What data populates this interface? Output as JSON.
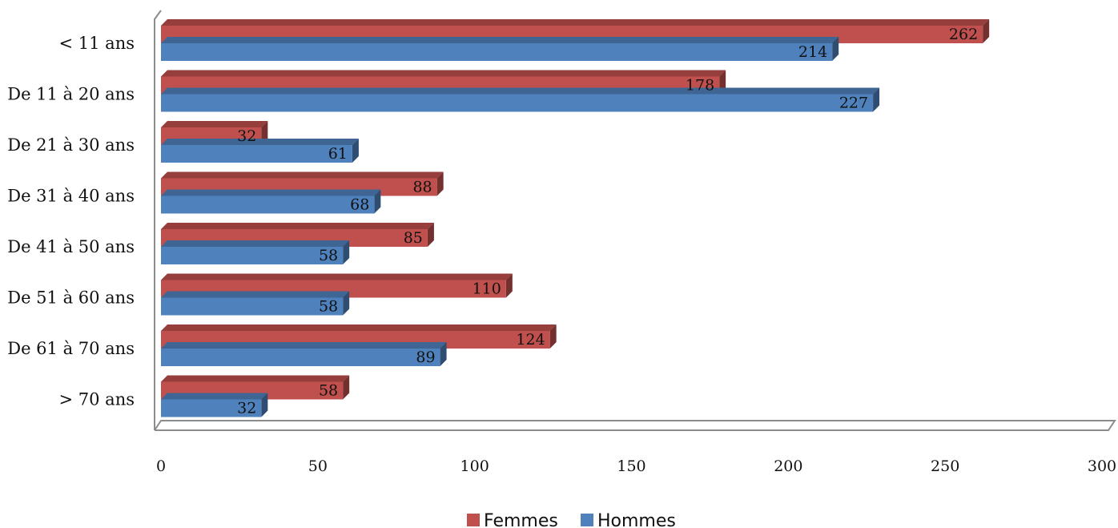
{
  "chart_data": {
    "type": "bar",
    "orientation": "horizontal",
    "style": "3d",
    "categories": [
      "< 11 ans",
      "De 11 à 20 ans",
      "De 21 à 30 ans",
      "De 31 à 40 ans",
      "De 41 à 50 ans",
      "De 51 à 60 ans",
      "De 61 à 70 ans",
      "> 70 ans"
    ],
    "series": [
      {
        "name": "Femmes",
        "color": "#c0504d",
        "values": [
          262,
          178,
          32,
          88,
          85,
          110,
          124,
          58
        ]
      },
      {
        "name": "Hommes",
        "color": "#4f81bd",
        "values": [
          214,
          227,
          61,
          68,
          58,
          58,
          89,
          32
        ]
      }
    ],
    "xlim": [
      0,
      300
    ],
    "x_ticks": [
      0,
      50,
      100,
      150,
      200,
      250,
      300
    ],
    "grid": false,
    "data_labels": true,
    "legend_position": "bottom"
  }
}
